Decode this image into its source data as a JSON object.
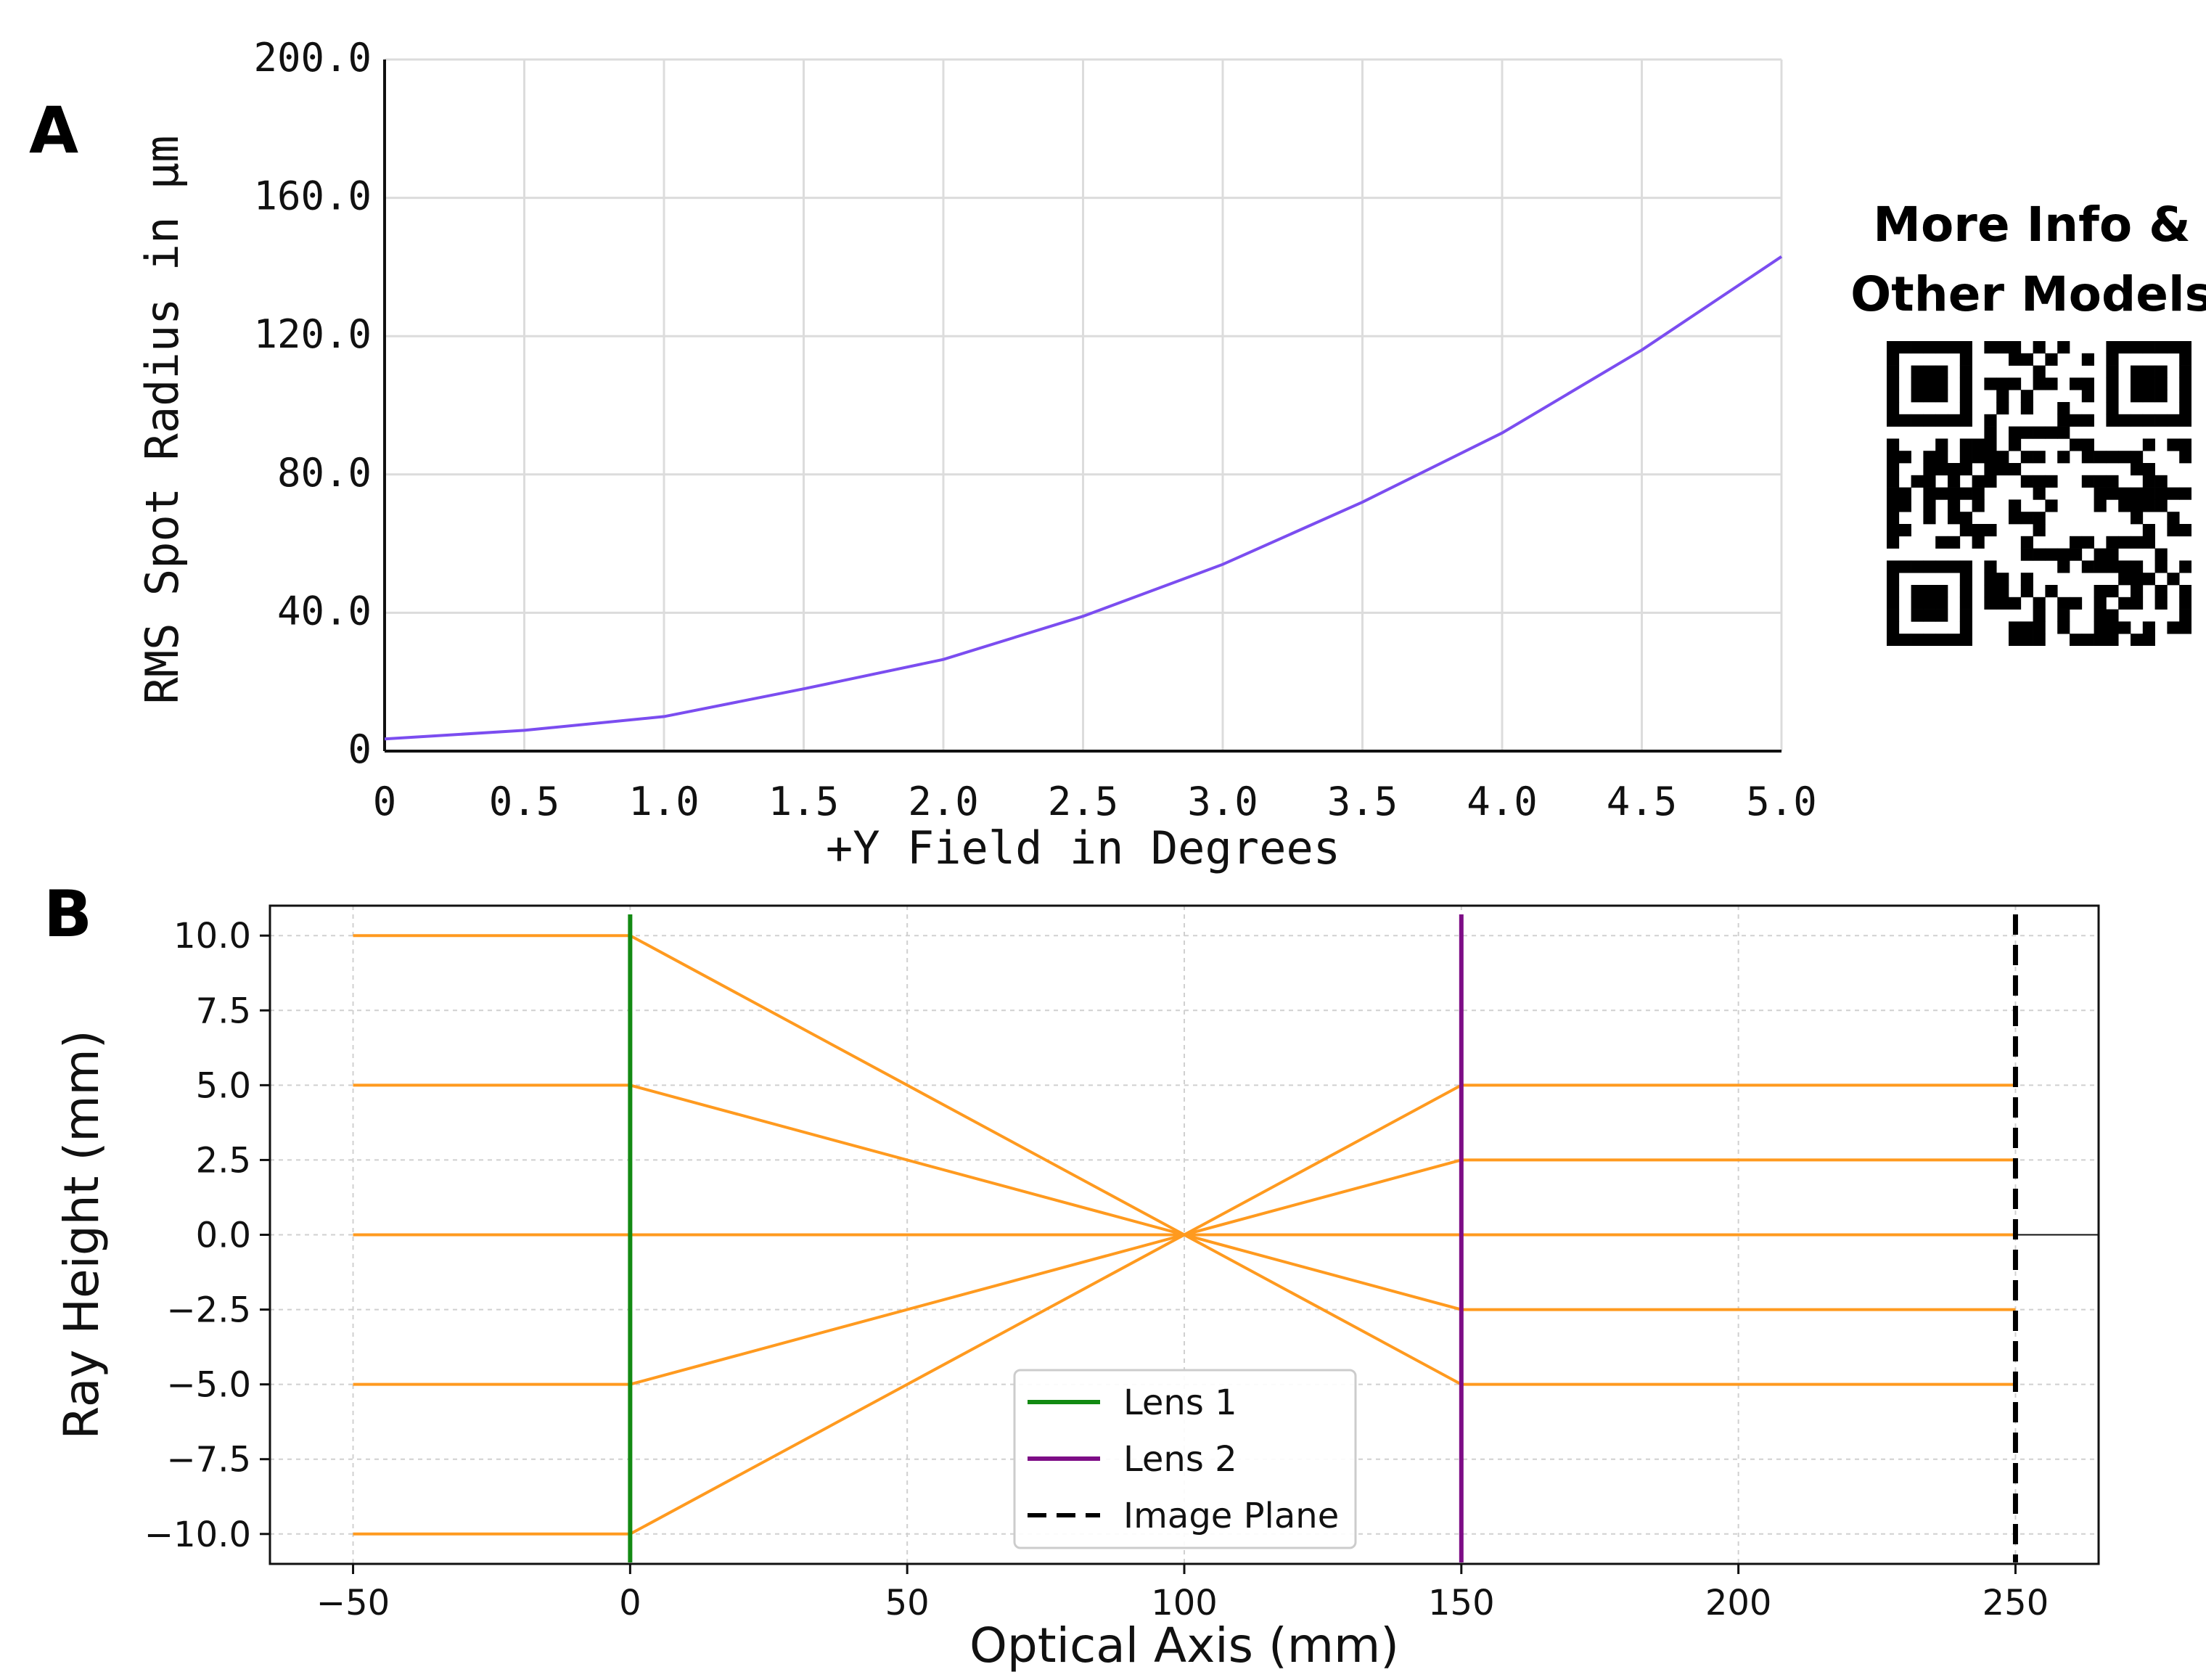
{
  "panel_labels": [
    "A",
    "B"
  ],
  "qr": {
    "caption": "More Info &\nOther Models",
    "icon": "qr-code-icon"
  },
  "chart_data": [
    {
      "type": "line",
      "panel": "A",
      "title": "",
      "xlabel": "+Y Field in Degrees",
      "ylabel": "RMS Spot Radius in µm",
      "xlim": [
        0,
        5.0
      ],
      "ylim": [
        0,
        200.0
      ],
      "xticks": [
        "0",
        "0.5",
        "1.0",
        "1.5",
        "2.0",
        "2.5",
        "3.0",
        "3.5",
        "4.0",
        "4.5",
        "5.0"
      ],
      "yticks": [
        "0",
        "40.0",
        "80.0",
        "120.0",
        "160.0",
        "200.0"
      ],
      "grid": true,
      "line_color": "#7b4df0",
      "series": [
        {
          "x": [
            0,
            0.5,
            1.0,
            1.5,
            2.0,
            2.5,
            3.0,
            3.5,
            4.0,
            4.5,
            5.0
          ],
          "y": [
            3.5,
            6.0,
            10.0,
            18.0,
            26.5,
            39.0,
            54.0,
            72.0,
            92.0,
            116.0,
            143.0
          ]
        }
      ]
    },
    {
      "type": "line",
      "panel": "B",
      "title": "",
      "xlabel": "Optical Axis (mm)",
      "ylabel": "Ray Height (mm)",
      "xlim": [
        -65,
        265
      ],
      "ylim": [
        -11.0,
        11.0
      ],
      "xticks": [
        "−50",
        "0",
        "50",
        "100",
        "150",
        "200",
        "250"
      ],
      "yticks": [
        "10.0",
        "7.5",
        "5.0",
        "2.5",
        "0.0",
        "−2.5",
        "−5.0",
        "−7.5",
        "−10.0"
      ],
      "grid": true,
      "legend_position": "bottom-center",
      "ray_color": "#ff9a1f",
      "rays": [
        {
          "x": [
            -50,
            0,
            100,
            150,
            250
          ],
          "y": [
            10.0,
            10.0,
            0,
            -5.0,
            -5.0
          ]
        },
        {
          "x": [
            -50,
            0,
            100,
            150,
            250
          ],
          "y": [
            5.0,
            5.0,
            0,
            -2.5,
            -2.5
          ]
        },
        {
          "x": [
            -50,
            0,
            100,
            150,
            250
          ],
          "y": [
            0.0,
            0.0,
            0,
            0.0,
            0.0
          ]
        },
        {
          "x": [
            -50,
            0,
            100,
            150,
            250
          ],
          "y": [
            -5.0,
            -5.0,
            0,
            2.5,
            2.5
          ]
        },
        {
          "x": [
            -50,
            0,
            100,
            150,
            250
          ],
          "y": [
            -10.0,
            -10.0,
            0,
            5.0,
            5.0
          ]
        }
      ],
      "elements": [
        {
          "name": "Lens 1",
          "x": 0,
          "color": "#138a13",
          "style": "solid"
        },
        {
          "name": "Lens 2",
          "x": 150,
          "color": "#7d0d86",
          "style": "solid"
        },
        {
          "name": "Image Plane",
          "x": 250,
          "color": "#000000",
          "style": "dashed"
        }
      ]
    }
  ]
}
